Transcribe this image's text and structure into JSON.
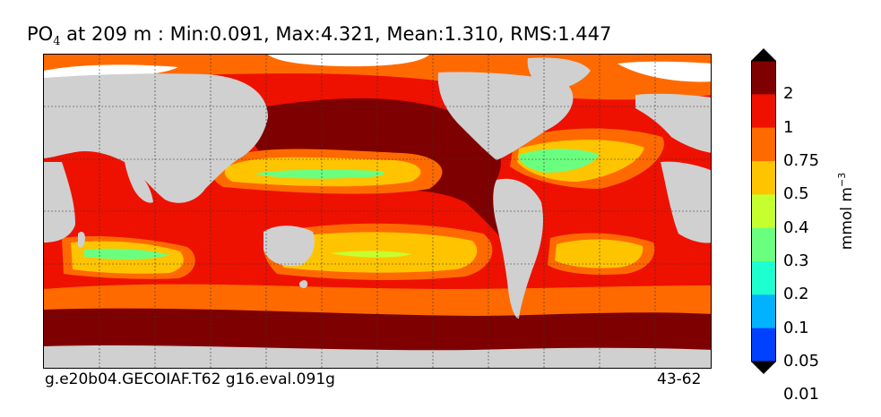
{
  "title": {
    "variable": "PO",
    "subscript": "4",
    "rest": " at 209 m : Min:0.091, Max:4.321, Mean:1.310, RMS:1.447"
  },
  "footer": {
    "left": "g.e20b04.GECOIAF.T62 g16.eval.091g",
    "right": "43-62"
  },
  "colorbar": {
    "unit_base": "mmol m",
    "unit_exp": "−3",
    "levels": [
      "2",
      "1",
      "0.75",
      "0.5",
      "0.4",
      "0.3",
      "0.2",
      "0.1",
      "0.05",
      "0.01"
    ],
    "colors": [
      "#7f0000",
      "#ee1100",
      "#ff6a00",
      "#ffc400",
      "#c6ff2e",
      "#6bff80",
      "#1dffcf",
      "#00b2ff",
      "#0040ff",
      "#0000e0",
      "#00007f"
    ]
  },
  "map_colors": {
    "land": "#d0d0d0",
    "ice": "#ffffff"
  }
}
